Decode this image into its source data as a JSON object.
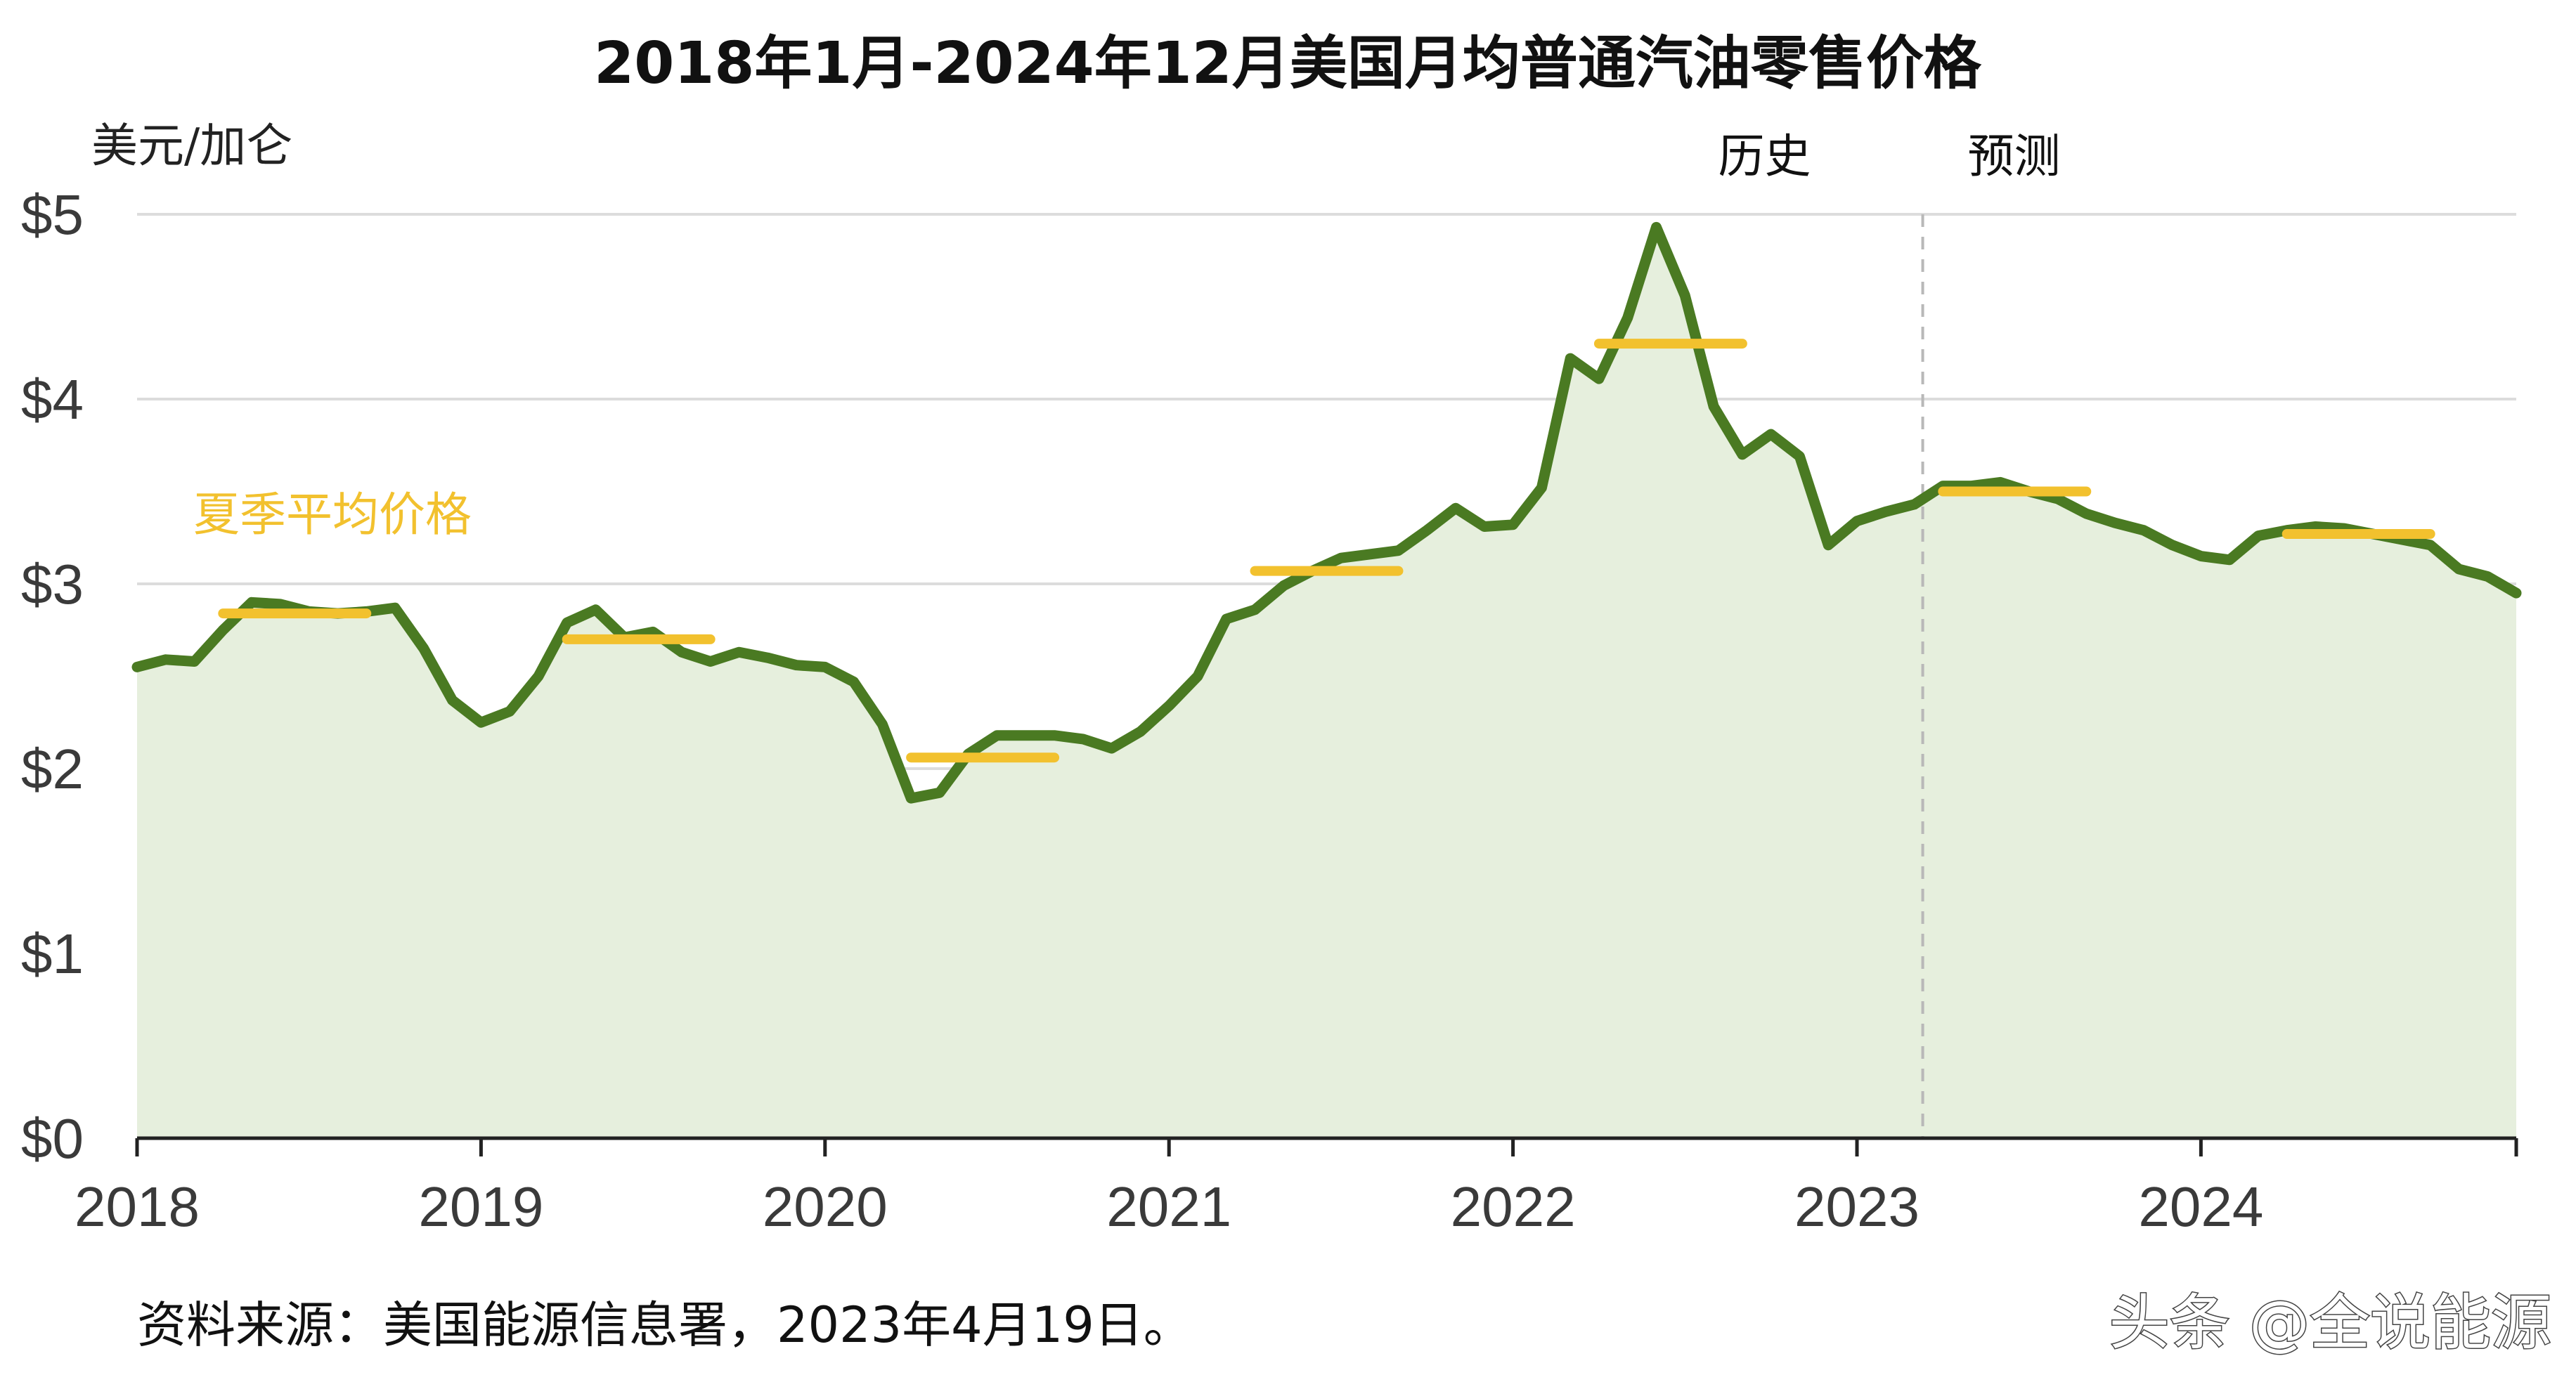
{
  "chart_data": {
    "type": "area",
    "title": "2018年1月-2024年12月美国月均普通汽油零售价格",
    "ylabel": "美元/加仑",
    "ylim": [
      0,
      5
    ],
    "yticks": [
      0,
      1,
      2,
      3,
      4,
      5
    ],
    "ytick_labels": [
      "$0",
      "$1",
      "$2",
      "$3",
      "$4",
      "$5"
    ],
    "x_start": "2018-01",
    "xlim": [
      "2018-01",
      "2024-12"
    ],
    "xtick_labels": [
      "2018",
      "2019",
      "2020",
      "2021",
      "2022",
      "2023",
      "2024"
    ],
    "grid": true,
    "region_labels": {
      "history": "历史",
      "forecast": "预测"
    },
    "forecast_start": "2023-03",
    "series": [
      {
        "name": "",
        "color": "#4a7a22",
        "fill": "#e6efdd",
        "values": [
          2.55,
          2.59,
          2.58,
          2.75,
          2.9,
          2.89,
          2.85,
          2.84,
          2.85,
          2.87,
          2.65,
          2.37,
          2.25,
          2.31,
          2.5,
          2.79,
          2.86,
          2.71,
          2.74,
          2.63,
          2.58,
          2.63,
          2.6,
          2.56,
          2.55,
          2.47,
          2.24,
          1.84,
          1.87,
          2.08,
          2.18,
          2.18,
          2.18,
          2.16,
          2.11,
          2.2,
          2.34,
          2.5,
          2.81,
          2.86,
          2.99,
          3.07,
          3.14,
          3.16,
          3.18,
          3.29,
          3.41,
          3.31,
          3.32,
          3.52,
          4.22,
          4.11,
          4.44,
          4.93,
          4.56,
          3.96,
          3.7,
          3.81,
          3.69,
          3.21,
          3.34,
          3.39,
          3.43,
          3.53,
          3.53,
          3.55,
          3.5,
          3.46,
          3.38,
          3.33,
          3.29,
          3.21,
          3.15,
          3.13,
          3.26,
          3.29,
          3.31,
          3.3,
          3.27,
          3.24,
          3.21,
          3.08,
          3.04,
          2.95
        ]
      }
    ],
    "summer_averages": {
      "label": "夏季平均价格",
      "color": "#f2c12e",
      "items": [
        {
          "year": 2018,
          "value": 2.84
        },
        {
          "year": 2019,
          "value": 2.7
        },
        {
          "year": 2020,
          "value": 2.06
        },
        {
          "year": 2021,
          "value": 3.07
        },
        {
          "year": 2022,
          "value": 4.3
        },
        {
          "year": 2023,
          "value": 3.5
        },
        {
          "year": 2024,
          "value": 3.27
        }
      ]
    }
  },
  "source_note": "资料来源：美国能源信息署，2023年4月19日。",
  "watermark": "头条 @全说能源"
}
